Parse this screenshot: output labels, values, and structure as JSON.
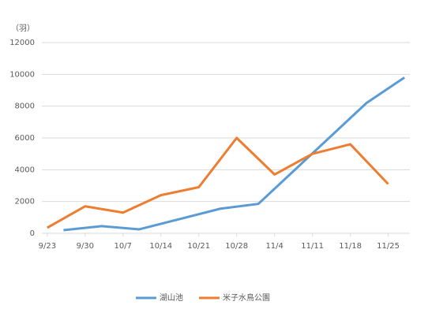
{
  "chart_data": {
    "type": "line",
    "y_label": "（羽）",
    "xlim": [
      -1,
      67
    ],
    "xticks": [
      {
        "value": 0,
        "label": "9/23"
      },
      {
        "value": 7,
        "label": "9/30"
      },
      {
        "value": 14,
        "label": "10/7"
      },
      {
        "value": 21,
        "label": "10/14"
      },
      {
        "value": 28,
        "label": "10/21"
      },
      {
        "value": 35,
        "label": "10/28"
      },
      {
        "value": 42,
        "label": "11/4"
      },
      {
        "value": 49,
        "label": "11/11"
      },
      {
        "value": 56,
        "label": "11/18"
      },
      {
        "value": 63,
        "label": "11/25"
      }
    ],
    "ylim": [
      0,
      12000
    ],
    "yticks": [
      0,
      2000,
      4000,
      6000,
      8000,
      10000,
      12000
    ],
    "grid": true,
    "legend": "bottom",
    "series": [
      {
        "name": "湖山池",
        "color": "#5b9bd5",
        "x": [
          3,
          10,
          17,
          32,
          39,
          59,
          66
        ],
        "values": [
          200,
          450,
          250,
          1550,
          1850,
          8200,
          9800
        ]
      },
      {
        "name": "米子水鳥公園",
        "color": "#ed7d31",
        "x": [
          0,
          7,
          14,
          21,
          28,
          35,
          42,
          49,
          56,
          63
        ],
        "values": [
          350,
          1700,
          1300,
          2400,
          2900,
          6000,
          3700,
          5000,
          5600,
          3100
        ]
      }
    ]
  }
}
